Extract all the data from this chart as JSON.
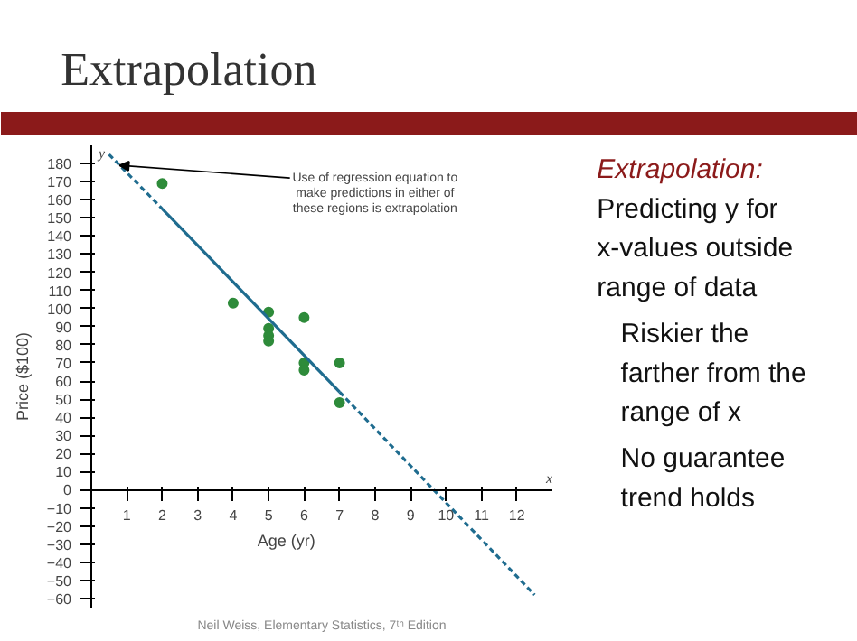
{
  "chart_data": {
    "type": "scatter",
    "title": "Extrapolation",
    "xlabel": "Age (yr)",
    "ylabel": "Price ($100)",
    "annotations": [
      {
        "text": "Use of regression equation to make predictions in either of these regions is extrapolation",
        "x": 0.8,
        "y": 179
      },
      "Extrapolation: Predicting y for x-values outside range of data",
      "Riskier the farther from the range of x",
      "No guarantee trend holds",
      "Neil Weiss, Elementary Statistics, 7ᵗʰ Edition",
      "x",
      "y"
    ],
    "series": [
      {
        "color": "#2e8b3a",
        "marker": "circle",
        "x": [
          2,
          4,
          5,
          5,
          5,
          5,
          6,
          6,
          6,
          7,
          7
        ],
        "values": [
          169,
          103,
          98,
          89,
          85,
          82,
          95,
          70,
          66,
          70,
          48
        ]
      },
      {
        "type": "line",
        "color": "#1f6c8f",
        "line_style": "solid",
        "x": [
          2,
          7
        ],
        "values": [
          155,
          54
        ]
      },
      {
        "type": "line",
        "color": "#1f6c8f",
        "line_style": "dashed",
        "x": [
          0.5,
          2
        ],
        "values": [
          185,
          155
        ]
      },
      {
        "type": "line",
        "color": "#1f6c8f",
        "line_style": "dashed",
        "x": [
          7,
          12.5
        ],
        "values": [
          54,
          -58
        ]
      }
    ],
    "xlim": [
      0,
      13
    ],
    "ylim": [
      -65,
      190
    ],
    "xticks": [
      1,
      2,
      3,
      4,
      5,
      6,
      7,
      8,
      9,
      10,
      11,
      12
    ],
    "yticks": [
      -60,
      -50,
      -40,
      -30,
      -20,
      -10,
      0,
      10,
      20,
      30,
      40,
      50,
      60,
      70,
      80,
      90,
      100,
      110,
      120,
      130,
      140,
      150,
      160,
      170,
      180
    ],
    "grid": false
  }
}
